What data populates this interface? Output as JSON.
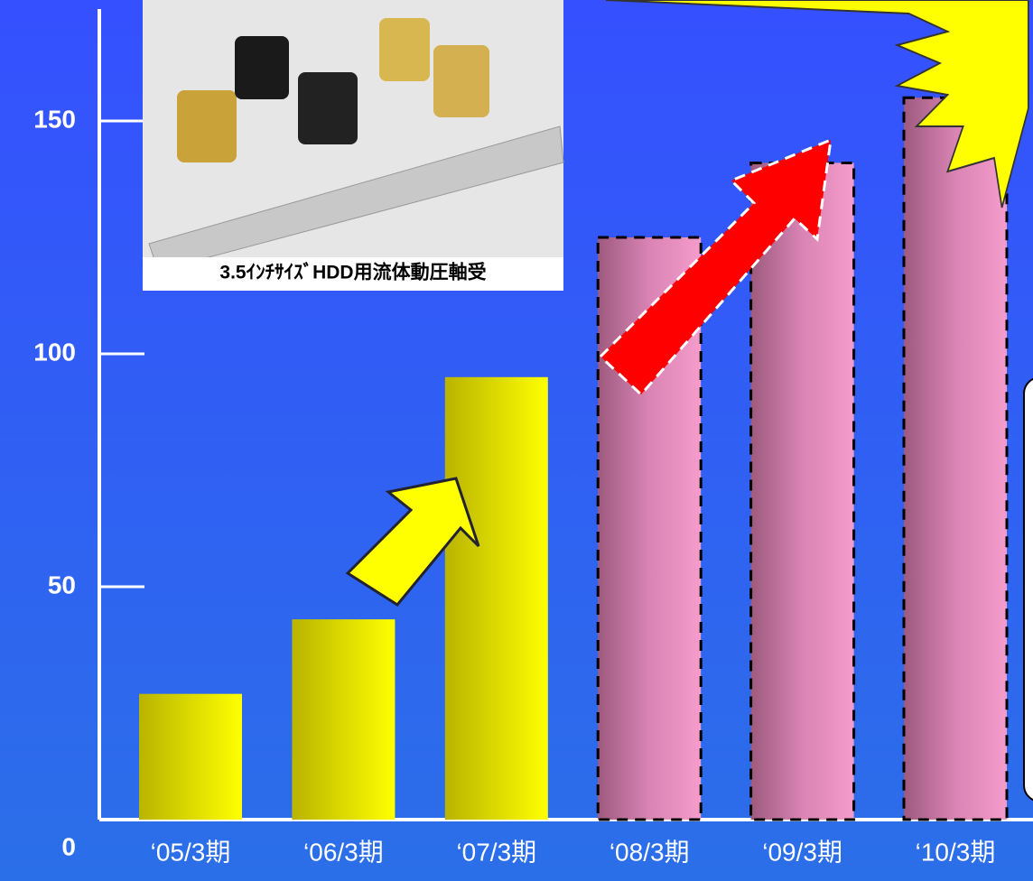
{
  "chart_data": {
    "type": "bar",
    "categories": [
      "‘05/3期",
      "‘06/3期",
      "‘07/3期",
      "‘08/3期",
      "‘09/3期",
      "‘10/3期"
    ],
    "values": [
      27,
      43,
      95,
      125,
      141,
      155
    ],
    "colors": [
      "#eeee00",
      "#eeee00",
      "#eeee00",
      "#e58bbf",
      "#e58bbf",
      "#e58bbf"
    ],
    "dashed": [
      false,
      false,
      false,
      true,
      true,
      true
    ],
    "ylim": [
      0,
      175
    ],
    "yticks": [
      0,
      50,
      100,
      150
    ],
    "photo_caption": "3.5ｲﾝﾁｻｲｽﾞHDD用流体動圧軸受"
  }
}
